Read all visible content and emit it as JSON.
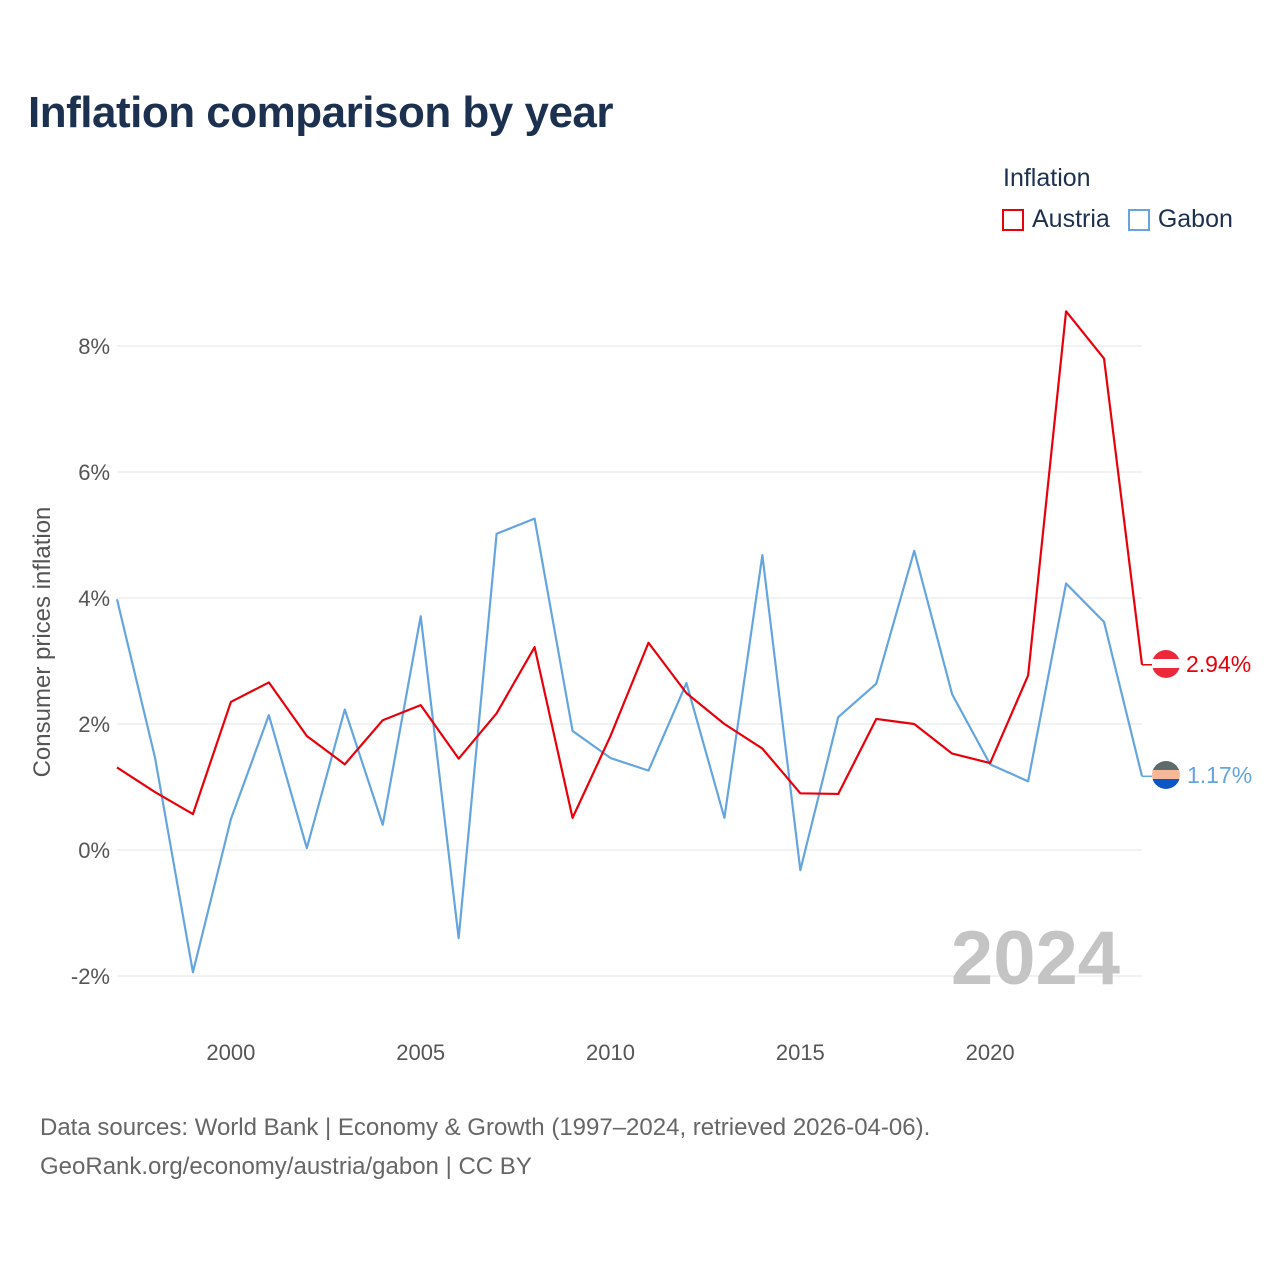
{
  "header": {
    "title": "Inflation comparison by year"
  },
  "legend": {
    "title": "Inflation",
    "items": [
      {
        "label": "Austria",
        "color": "#e8000b"
      },
      {
        "label": "Gabon",
        "color": "#64a5e0"
      }
    ]
  },
  "footer": {
    "source_line1": "Data sources: World Bank | Economy & Growth (1997–2024, retrieved 2026-04-06).",
    "source_line2": "GeoRank.org/economy/austria/gabon | CC BY"
  },
  "chart_data": {
    "type": "line",
    "title": "Inflation comparison by year",
    "xlabel": "",
    "ylabel": "Consumer prices inflation",
    "xlim": [
      1997,
      2024
    ],
    "ylim": [
      -2.8,
      9.0
    ],
    "y_ticks": [
      -2,
      0,
      2,
      4,
      6,
      8
    ],
    "y_tick_labels": [
      "-2%",
      "0%",
      "2%",
      "4%",
      "6%",
      "8%"
    ],
    "x_ticks": [
      2000,
      2005,
      2010,
      2015,
      2020
    ],
    "x_tick_labels": [
      "2000",
      "2005",
      "2010",
      "2015",
      "2020"
    ],
    "grid": true,
    "legend_position": "top-right",
    "watermark_year": "2024",
    "x": [
      1997,
      1998,
      1999,
      2000,
      2001,
      2002,
      2003,
      2004,
      2005,
      2006,
      2007,
      2008,
      2009,
      2010,
      2011,
      2012,
      2013,
      2014,
      2015,
      2016,
      2017,
      2018,
      2019,
      2020,
      2021,
      2022,
      2023,
      2024
    ],
    "series": [
      {
        "name": "Austria",
        "color": "#e8000b",
        "end_label": "2.94%",
        "values": [
          1.31,
          0.92,
          0.57,
          2.35,
          2.66,
          1.81,
          1.36,
          2.06,
          2.3,
          1.45,
          2.17,
          3.22,
          0.51,
          1.81,
          3.29,
          2.49,
          2.0,
          1.61,
          0.9,
          0.89,
          2.08,
          2.0,
          1.53,
          1.38,
          2.77,
          8.55,
          7.8,
          2.94
        ]
      },
      {
        "name": "Gabon",
        "color": "#64a5e0",
        "end_label": "1.17%",
        "values": [
          3.98,
          1.47,
          -1.94,
          0.49,
          2.14,
          0.03,
          2.23,
          0.4,
          3.71,
          -1.4,
          5.02,
          5.26,
          1.89,
          1.46,
          1.26,
          2.65,
          0.51,
          4.68,
          -0.32,
          2.11,
          2.64,
          4.75,
          2.47,
          1.36,
          1.09,
          4.23,
          3.62,
          1.17
        ]
      }
    ]
  }
}
